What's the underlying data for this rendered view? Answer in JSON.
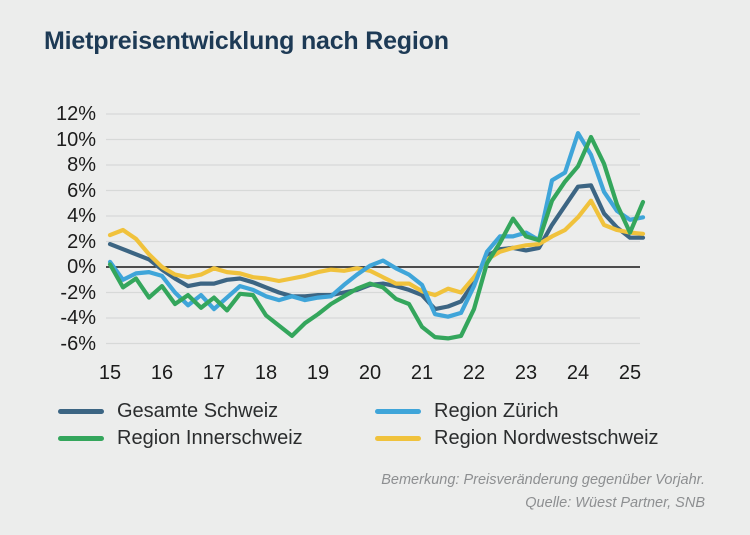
{
  "title": "Mietpreisentwicklung nach Region",
  "footnote": {
    "remark": "Bemerkung: Preisveränderung gegenüber Vorjahr.",
    "source": "Quelle: Wüest Partner, SNB"
  },
  "chart_data": {
    "type": "line",
    "title": "Mietpreisentwicklung nach Region",
    "xlabel": "",
    "ylabel": "",
    "x_start": 2015,
    "x_step": 0.25,
    "x_range": [
      2014.9,
      2025.45
    ],
    "ylim": [
      -6,
      12
    ],
    "grid": true,
    "zero_line": true,
    "legend_position": "bottom",
    "x_ticks": [
      2015,
      2016,
      2017,
      2018,
      2019,
      2020,
      2021,
      2022,
      2023,
      2024,
      2025
    ],
    "xtick_labels": [
      "15",
      "16",
      "17",
      "18",
      "19",
      "20",
      "21",
      "22",
      "23",
      "24",
      "25"
    ],
    "y_ticks": [
      12,
      10,
      8,
      6,
      4,
      2,
      0,
      -2,
      -4,
      -6
    ],
    "ytick_labels": [
      "12%",
      "10%",
      "8%",
      "6%",
      "4%",
      "2%",
      "0%",
      "-2%",
      "-4%",
      "-6%"
    ],
    "unit": "%",
    "draw_order": [
      0,
      3,
      1,
      2
    ],
    "series": [
      {
        "name": "Gesamte Schweiz",
        "color": "#3c6583",
        "values": [
          1.8,
          1.4,
          1.0,
          0.6,
          -0.2,
          -0.9,
          -1.5,
          -1.3,
          -1.3,
          -1.0,
          -0.9,
          -1.2,
          -1.6,
          -2.0,
          -2.3,
          -2.3,
          -2.2,
          -2.2,
          -2.0,
          -1.8,
          -1.4,
          -1.3,
          -1.5,
          -1.8,
          -2.2,
          -3.3,
          -3.1,
          -2.7,
          -1.2,
          0.9,
          1.4,
          1.5,
          1.3,
          1.5,
          3.3,
          4.8,
          6.3,
          6.4,
          4.2,
          3.1,
          2.3,
          2.3
        ]
      },
      {
        "name": "Region Zürich",
        "color": "#3fa5d9",
        "values": [
          0.4,
          -1.0,
          -0.5,
          -0.4,
          -0.7,
          -2.0,
          -3.0,
          -2.2,
          -3.3,
          -2.4,
          -1.5,
          -1.8,
          -2.3,
          -2.6,
          -2.3,
          -2.6,
          -2.4,
          -2.3,
          -1.4,
          -0.6,
          0.1,
          0.5,
          -0.1,
          -0.6,
          -1.4,
          -3.7,
          -3.9,
          -3.6,
          -1.5,
          1.2,
          2.4,
          2.4,
          2.7,
          2.1,
          6.8,
          7.4,
          10.5,
          8.8,
          5.9,
          4.4,
          3.7,
          3.9
        ]
      },
      {
        "name": "Region Innerschweiz",
        "color": "#34a65c",
        "values": [
          0.2,
          -1.6,
          -0.9,
          -2.4,
          -1.5,
          -2.9,
          -2.2,
          -3.2,
          -2.4,
          -3.4,
          -2.1,
          -2.2,
          -3.8,
          -4.6,
          -5.4,
          -4.4,
          -3.7,
          -2.9,
          -2.3,
          -1.7,
          -1.3,
          -1.6,
          -2.5,
          -2.9,
          -4.7,
          -5.5,
          -5.6,
          -5.4,
          -3.3,
          0.3,
          1.9,
          3.8,
          2.4,
          2.1,
          5.2,
          6.7,
          7.9,
          10.2,
          8.1,
          4.9,
          2.7,
          5.1
        ]
      },
      {
        "name": "Region Nordwestschweiz",
        "color": "#f0c23c",
        "values": [
          2.5,
          2.9,
          2.2,
          1.0,
          0.0,
          -0.6,
          -0.8,
          -0.6,
          -0.1,
          -0.4,
          -0.5,
          -0.8,
          -0.9,
          -1.1,
          -0.9,
          -0.7,
          -0.4,
          -0.2,
          -0.3,
          -0.1,
          -0.3,
          -0.8,
          -1.3,
          -1.3,
          -1.9,
          -2.2,
          -1.7,
          -2.0,
          -0.8,
          0.6,
          1.2,
          1.5,
          1.7,
          1.8,
          2.4,
          2.9,
          3.9,
          5.2,
          3.3,
          2.9,
          2.7,
          2.6
        ]
      }
    ]
  }
}
